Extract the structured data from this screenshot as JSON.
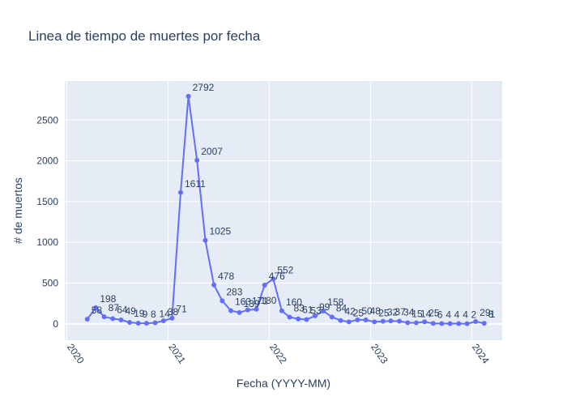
{
  "chart_data": {
    "type": "line",
    "title": "Linea de tiempo de muertes por fecha",
    "xlabel": "Fecha (YYYY-MM)",
    "ylabel": "# de muertos",
    "x_tick_labels": [
      "2020",
      "2021",
      "2022",
      "2023",
      "2024"
    ],
    "y_tick_labels": [
      "0",
      "500",
      "1000",
      "1500",
      "2000",
      "2500"
    ],
    "y_ticks": [
      0,
      500,
      1000,
      1500,
      2000,
      2500
    ],
    "ylim": [
      -200,
      2980
    ],
    "xlim": [
      "2019-12-25",
      "2024-04-20"
    ],
    "grid": true,
    "line_color": "#636efa",
    "plot_bg": "#e5ecf6",
    "series": [
      {
        "x": [
          "2020-03",
          "2020-04",
          "2020-05",
          "2020-06",
          "2020-07",
          "2020-08",
          "2020-09",
          "2020-10",
          "2020-11",
          "2020-12",
          "2021-01",
          "2021-02",
          "2021-03",
          "2021-04",
          "2021-05",
          "2021-06",
          "2021-07",
          "2021-08",
          "2021-09",
          "2021-10",
          "2021-11",
          "2021-12",
          "2022-01",
          "2022-02",
          "2022-03",
          "2022-04",
          "2022-05",
          "2022-06",
          "2022-07",
          "2022-08",
          "2022-09",
          "2022-10",
          "2022-11",
          "2022-12",
          "2023-01",
          "2023-02",
          "2023-03",
          "2023-04",
          "2023-05",
          "2023-06",
          "2023-07",
          "2023-08",
          "2023-09",
          "2023-10",
          "2023-11",
          "2023-12",
          "2024-01",
          "2024-02"
        ],
        "values": [
          58,
          198,
          87,
          64,
          49,
          19,
          9,
          8,
          14,
          38,
          71,
          1611,
          2792,
          2007,
          1025,
          478,
          283,
          163,
          139,
          171,
          180,
          476,
          552,
          160,
          83,
          61,
          53,
          99,
          158,
          84,
          42,
          25,
          50,
          48,
          25,
          32,
          37,
          34,
          15,
          14,
          25,
          6,
          4,
          4,
          4,
          2,
          29,
          8
        ],
        "labels": [
          "58",
          "198",
          "87",
          "64",
          "49",
          "19",
          "9",
          "8",
          "14",
          "38",
          "71",
          "1611",
          "2792",
          "2007",
          "1025",
          "478",
          "283",
          "163",
          "139",
          "171",
          "180",
          "476",
          "552",
          "160",
          "83",
          "61",
          "53",
          "99",
          "158",
          "84",
          "42",
          "25",
          "50",
          "48",
          "25",
          "32",
          "37",
          "34",
          "15",
          "14",
          "25",
          "6",
          "4",
          "4",
          "4",
          "2",
          "29",
          "8"
        ]
      }
    ],
    "extra_labels": [
      "1"
    ]
  }
}
